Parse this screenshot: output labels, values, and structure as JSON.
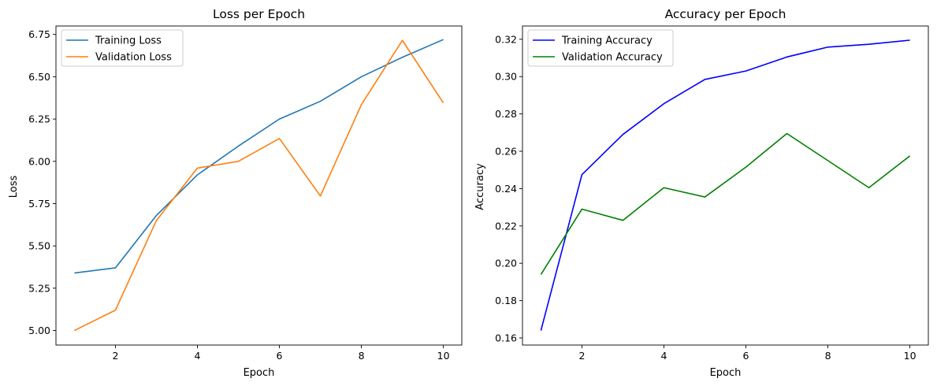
{
  "chart_data": [
    {
      "type": "line",
      "title": "Loss per Epoch",
      "xlabel": "Epoch",
      "ylabel": "Loss",
      "xlim": [
        0.55,
        10.45
      ],
      "ylim": [
        4.914,
        6.8
      ],
      "xticks": [
        2,
        4,
        6,
        8,
        10
      ],
      "yticks": [
        5.0,
        5.25,
        5.5,
        5.75,
        6.0,
        6.25,
        6.5,
        6.75
      ],
      "ytick_decimals": 2,
      "grid": false,
      "legend_position": "upper-left",
      "x": [
        1,
        2,
        3,
        4,
        5,
        6,
        7,
        8,
        9,
        10
      ],
      "series": [
        {
          "name": "Training Loss",
          "color": "#1f77b4",
          "values": [
            5.34,
            5.37,
            5.68,
            5.92,
            6.09,
            6.25,
            6.355,
            6.5,
            6.615,
            6.72
          ]
        },
        {
          "name": "Validation Loss",
          "color": "#ff7f0e",
          "values": [
            5.0,
            5.12,
            5.65,
            5.96,
            6.0,
            6.135,
            5.795,
            6.335,
            6.715,
            6.345
          ]
        }
      ]
    },
    {
      "type": "line",
      "title": "Accuracy per Epoch",
      "xlabel": "Epoch",
      "ylabel": "Accuracy",
      "xlim": [
        0.55,
        10.45
      ],
      "ylim": [
        0.1562,
        0.3271
      ],
      "xticks": [
        2,
        4,
        6,
        8,
        10
      ],
      "yticks": [
        0.16,
        0.18,
        0.2,
        0.22,
        0.24,
        0.26,
        0.28,
        0.3,
        0.32
      ],
      "ytick_decimals": 2,
      "grid": false,
      "legend_position": "upper-left",
      "x": [
        1,
        2,
        3,
        4,
        5,
        6,
        7,
        8,
        9,
        10
      ],
      "series": [
        {
          "name": "Training Accuracy",
          "color": "#0000ff",
          "values": [
            0.164,
            0.2475,
            0.269,
            0.2855,
            0.2985,
            0.303,
            0.3105,
            0.3158,
            0.3173,
            0.3195
          ]
        },
        {
          "name": "Validation Accuracy",
          "color": "#008000",
          "values": [
            0.194,
            0.229,
            0.223,
            0.2405,
            0.2355,
            0.2515,
            0.2695,
            0.255,
            0.2405,
            0.2575
          ]
        }
      ]
    }
  ]
}
